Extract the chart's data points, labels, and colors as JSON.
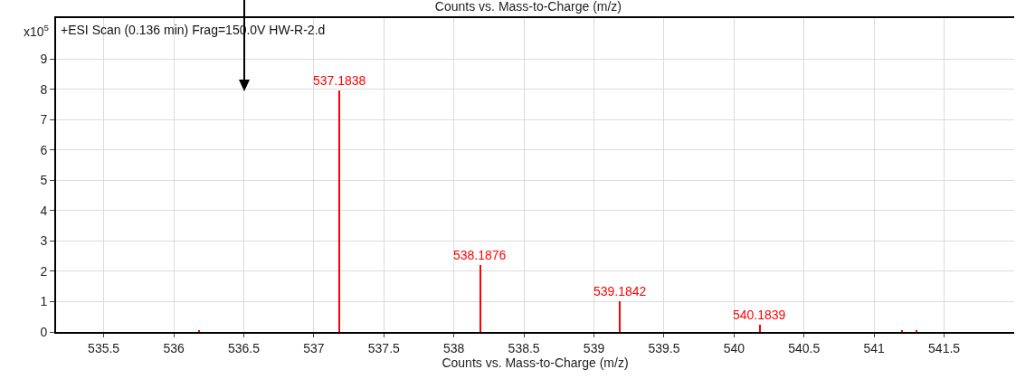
{
  "chart_data": {
    "type": "bar",
    "title": "Counts vs. Mass-to-Charge (m/z)",
    "xlabel": "Counts vs. Mass-to-Charge (m/z)",
    "ylabel": "x10$^{5}$",
    "annotations": [
      "+ESI Scan (0.136 min) Frag=150.0V HW-R-2.d",
      {
        "text": "537.1838",
        "x": 537.1838,
        "y": 7.95
      },
      {
        "text": "538.1876",
        "x": 538.1876,
        "y": 2.2
      },
      {
        "text": "539.1842",
        "x": 539.1842,
        "y": 1.0
      },
      {
        "text": "540.1839",
        "x": 540.1839,
        "y": 0.25
      }
    ],
    "x": [
      536.18,
      537.1838,
      538.1876,
      539.1842,
      540.1839,
      541.2,
      541.3
    ],
    "values": [
      0.05,
      7.95,
      2.2,
      1.0,
      0.25,
      0.05,
      0.05
    ],
    "color": "#ff0000",
    "xlim": [
      535.16,
      542.0
    ],
    "xticks": [
      535.5,
      536,
      536.5,
      537,
      537.5,
      538,
      538.5,
      539,
      539.5,
      540,
      540.5,
      541,
      541.5
    ],
    "ylim": [
      0,
      10.35
    ],
    "yticks": [
      0,
      1,
      2,
      3,
      4,
      5,
      6,
      7,
      8,
      9
    ],
    "grid": true
  }
}
